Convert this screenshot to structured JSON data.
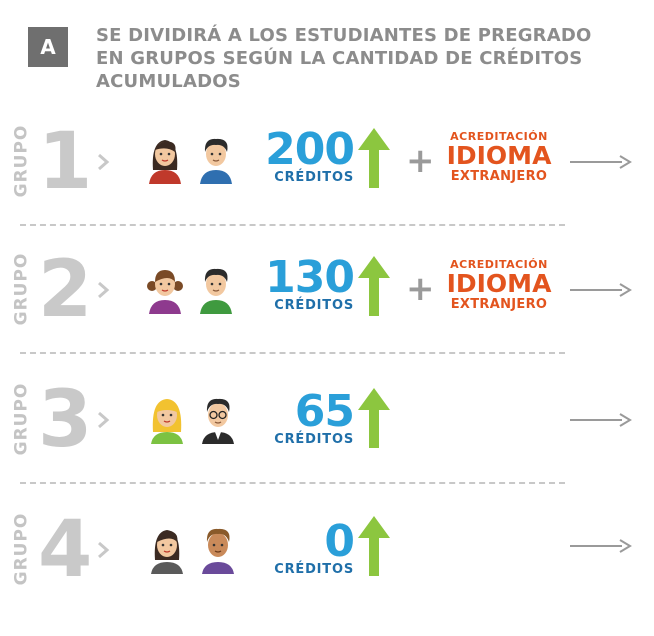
{
  "header": {
    "badge": "A",
    "title_lines": [
      "SE DIVIDIRÁ A LOS ESTUDIANTES DE PREGRADO",
      "EN GRUPOS SEGÚN LA CANTIDAD DE CRÉDITOS",
      "ACUMULADOS"
    ]
  },
  "groups": [
    {
      "label": "GRUPO",
      "numeral": "1",
      "credits": "200",
      "credits_label": "CRÉDITOS",
      "plus": "+",
      "acreditacion": [
        "ACREDITACIÓN",
        "IDIOMA",
        "EXTRANJERO"
      ]
    },
    {
      "label": "GRUPO",
      "numeral": "2",
      "credits": "130",
      "credits_label": "CRÉDITOS",
      "plus": "+",
      "acreditacion": [
        "ACREDITACIÓN",
        "IDIOMA",
        "EXTRANJERO"
      ]
    },
    {
      "label": "GRUPO",
      "numeral": "3",
      "credits": "65",
      "credits_label": "CRÉDITOS"
    },
    {
      "label": "GRUPO",
      "numeral": "4",
      "credits": "0",
      "credits_label": "CRÉDITOS"
    }
  ],
  "colors": {
    "credits_number": "#2a9fd9",
    "credits_label": "#1f6fa9",
    "up_arrow": "#8cc63f",
    "acreditacion": "#e3541e",
    "muted_gray": "#c9c9c9",
    "title_gray": "#8c8c8c"
  },
  "icons": [
    "chevron-right-icon",
    "student-female-icon",
    "student-male-icon",
    "up-arrow-icon",
    "right-arrow-icon"
  ]
}
